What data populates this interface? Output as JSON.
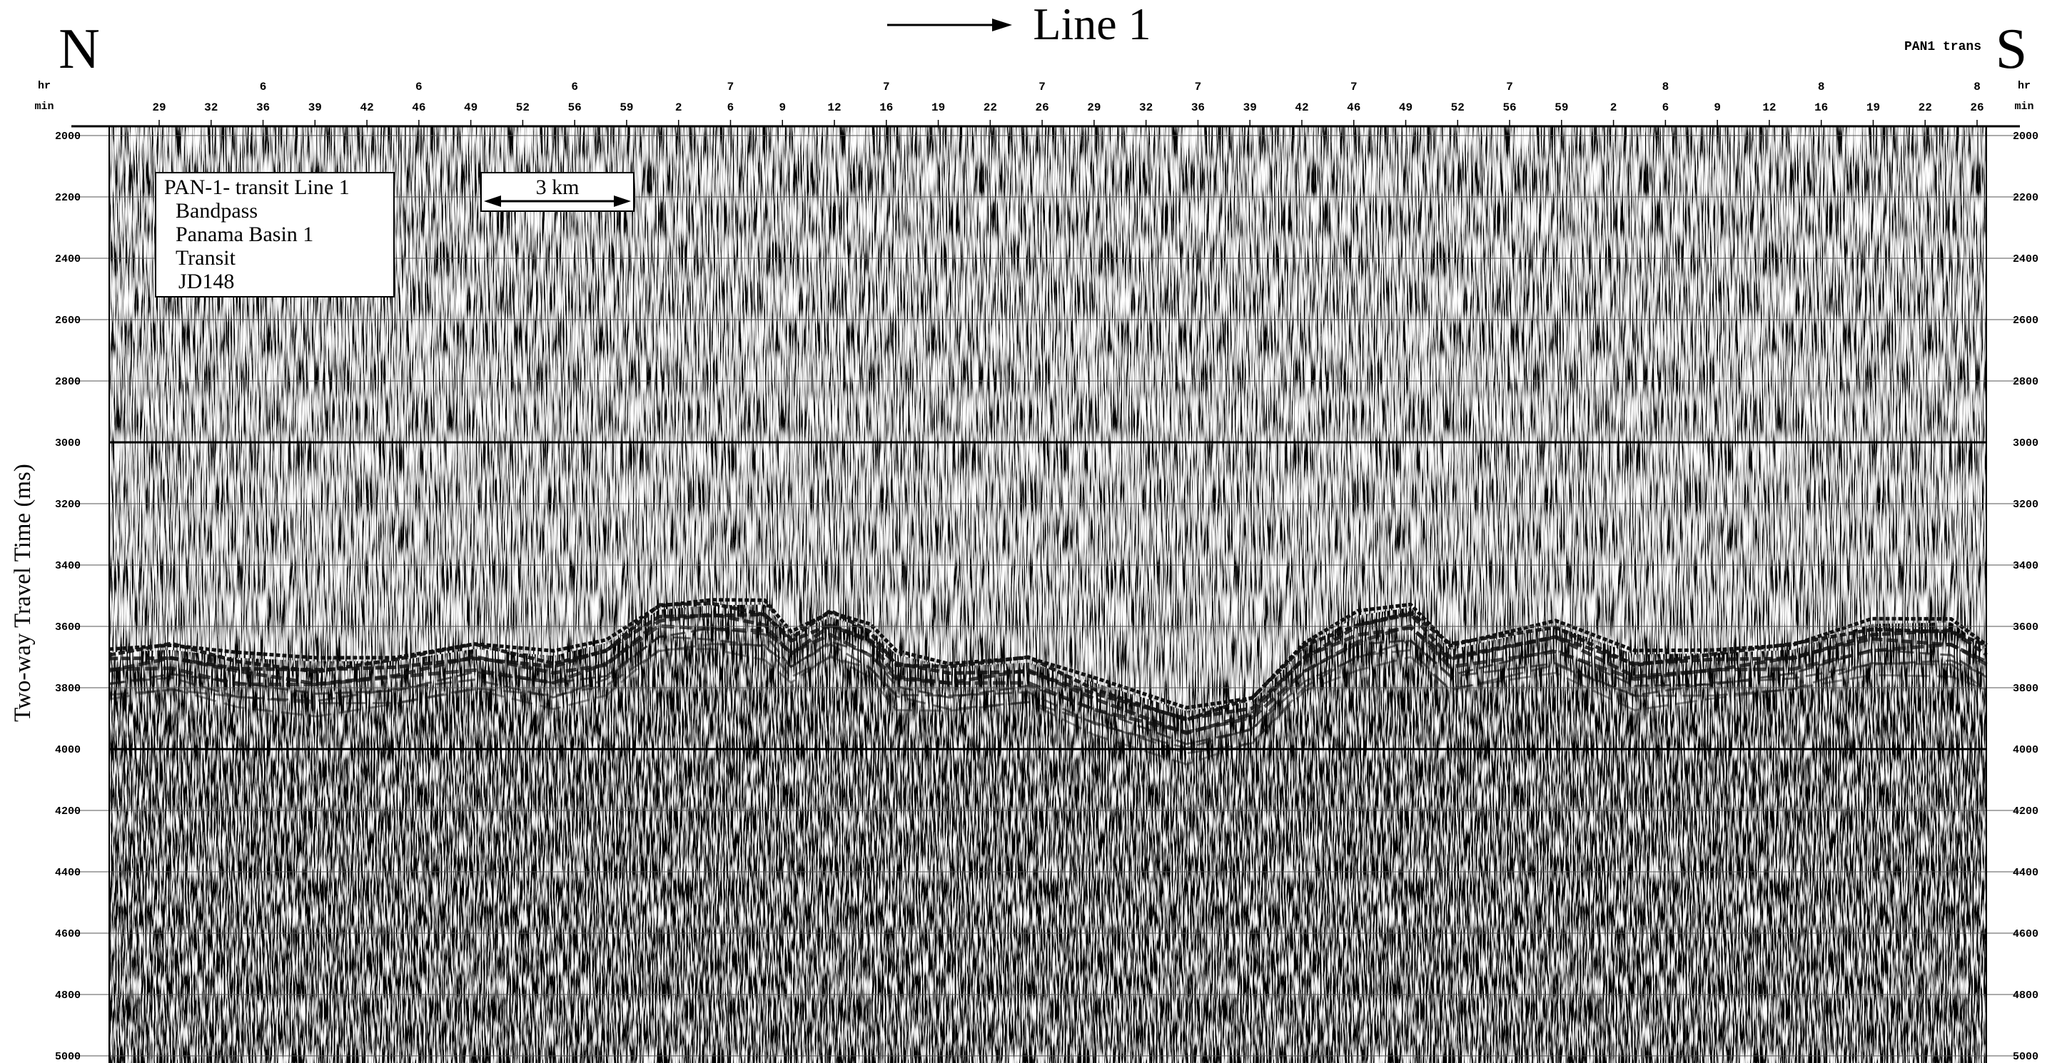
{
  "header": {
    "north": "N",
    "south": "S",
    "title": "Line 1",
    "tag": "PAN1 trans"
  },
  "time_axis": {
    "hour_label": "hr",
    "minute_label": "min",
    "hours": [
      6,
      6,
      6,
      7,
      7,
      7,
      7,
      7,
      7,
      8,
      8,
      8
    ],
    "minutes": [
      29,
      32,
      36,
      39,
      42,
      46,
      49,
      52,
      56,
      59,
      2,
      6,
      9,
      12,
      16,
      19,
      22,
      26,
      29,
      32,
      36,
      39,
      42,
      46,
      49,
      52,
      56,
      59,
      2,
      6,
      9,
      12,
      16,
      19,
      22,
      26
    ]
  },
  "depth_axis": {
    "label": "Two-way Travel Time (ms)",
    "ticks": [
      2000,
      2200,
      2400,
      2600,
      2800,
      3000,
      3200,
      3400,
      3600,
      3800,
      4000,
      4200,
      4400,
      4600,
      4800,
      5000
    ],
    "major": [
      3000,
      4000
    ]
  },
  "legend": {
    "lines": [
      "PAN-1- transit Line 1",
      "Bandpass",
      "Panama Basin 1",
      "Transit",
      "JD148"
    ]
  },
  "scale_bar": "3 km"
}
